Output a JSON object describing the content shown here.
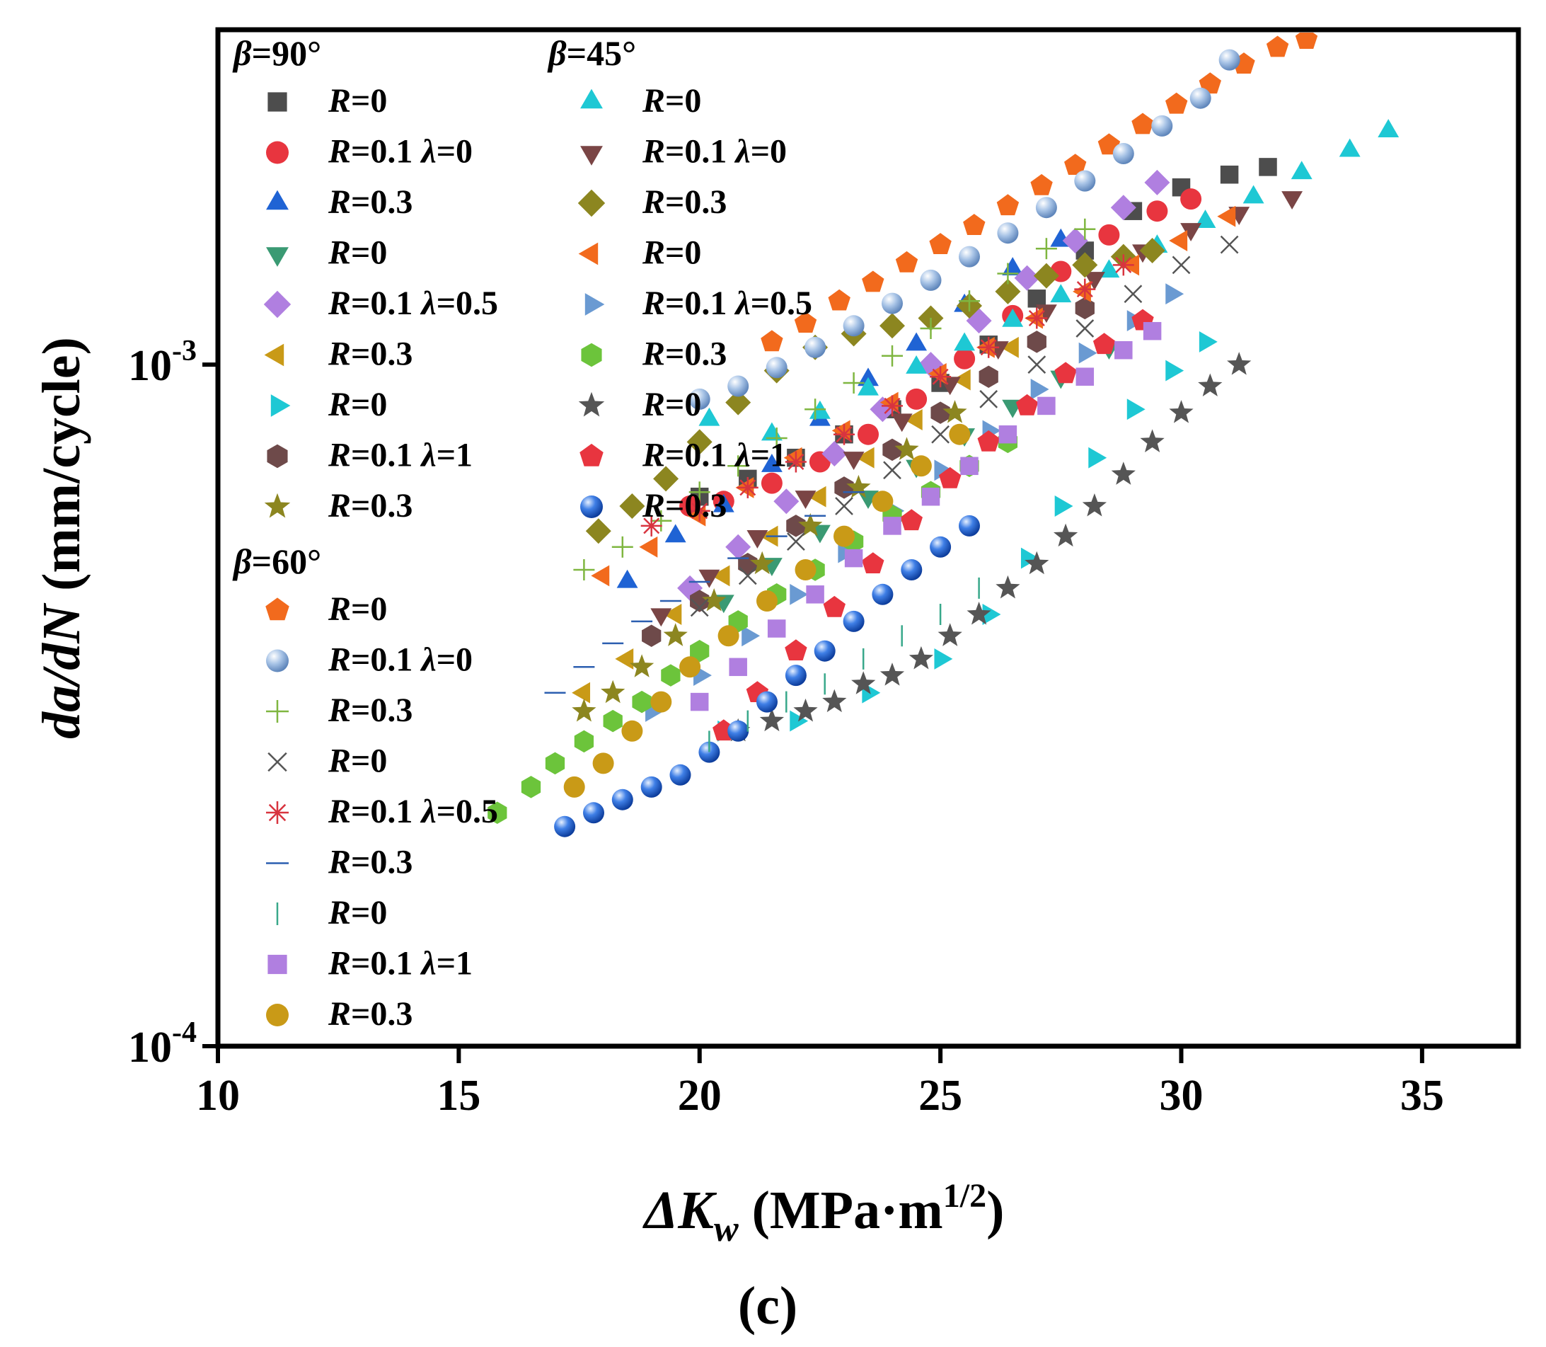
{
  "chart_data": {
    "type": "scatter",
    "x_scale": "linear",
    "y_scale": "log",
    "xlim": [
      10,
      37
    ],
    "ylim": [
      0.0001,
      0.0031
    ],
    "x_ticks": [
      10,
      15,
      20,
      25,
      30,
      35
    ],
    "x_tick_labels": [
      "10",
      "15",
      "20",
      "25",
      "30",
      "35"
    ],
    "y_ticks": [
      0.0001,
      0.001
    ],
    "y_tick_labels": [
      {
        "base": "10",
        "exp": "-4"
      },
      {
        "base": "10",
        "exp": "-3"
      }
    ],
    "xlabel": {
      "delta": "ΔK",
      "sub": "w",
      "unit": " (MPa·m",
      "sup": "1/2",
      "close": ")"
    },
    "ylabel": {
      "part1": "da/dN",
      "part2": " (mm/cycle)"
    },
    "panel_label": "(c)",
    "legend_groups": [
      {
        "title": "β=90°",
        "column": 0
      },
      {
        "title": "β=45°",
        "column": 1
      },
      {
        "title": "β=60°",
        "column": 0
      }
    ],
    "series": [
      {
        "group": 0,
        "name": "R=0",
        "marker": "square",
        "color": "#4d4d4d",
        "x": [
          20.0,
          21.0,
          22.0,
          23.0,
          24.0,
          25.0,
          26.0,
          27.0,
          28.0,
          29.0,
          30.0,
          31.0,
          31.8
        ],
        "y": [
          0.00064,
          0.00068,
          0.00073,
          0.00079,
          0.00086,
          0.00094,
          0.00107,
          0.00125,
          0.00147,
          0.00168,
          0.00182,
          0.0019,
          0.00195
        ]
      },
      {
        "group": 0,
        "name": "R=0.1 λ=0",
        "marker": "circle",
        "color": "#e8353f",
        "x": [
          19.8,
          20.5,
          21.5,
          22.5,
          23.5,
          24.5,
          25.5,
          26.5,
          27.5,
          28.5,
          29.5,
          30.2
        ],
        "y": [
          0.00062,
          0.00063,
          0.00067,
          0.00072,
          0.00079,
          0.00089,
          0.00102,
          0.00118,
          0.00137,
          0.00155,
          0.00168,
          0.00175
        ]
      },
      {
        "group": 0,
        "name": "R=0.3",
        "marker": "triangle-up",
        "color": "#1f63d4",
        "x": [
          18.5,
          19.5,
          20.5,
          21.5,
          22.5,
          23.5,
          24.5,
          25.5,
          26.5,
          27.5
        ],
        "y": [
          0.00048,
          0.00056,
          0.00062,
          0.00071,
          0.00083,
          0.00095,
          0.00107,
          0.00122,
          0.00138,
          0.00152
        ]
      },
      {
        "group": 0,
        "name": "R=0",
        "marker": "triangle-down",
        "color": "#3a9a73",
        "x": [
          20.5,
          21.5,
          22.5,
          23.5,
          24.5,
          25.5,
          26.5,
          27.5,
          28.5
        ],
        "y": [
          0.00045,
          0.00051,
          0.00057,
          0.00064,
          0.00071,
          0.00079,
          0.00087,
          0.00096,
          0.00106
        ]
      },
      {
        "group": 0,
        "name": "R=0.1 λ=0.5",
        "marker": "diamond",
        "color": "#b07fe0",
        "x": [
          19.8,
          20.8,
          21.8,
          22.8,
          23.8,
          24.8,
          25.8,
          26.8,
          27.8,
          28.8,
          29.5
        ],
        "y": [
          0.00047,
          0.00054,
          0.00063,
          0.00074,
          0.00086,
          0.001,
          0.00116,
          0.00134,
          0.00152,
          0.0017,
          0.00185
        ]
      },
      {
        "group": 0,
        "name": "R=0.3",
        "marker": "triangle-left",
        "color": "#c99a17",
        "x": [
          17.6,
          18.5,
          19.5,
          20.5,
          21.5,
          22.5,
          23.5,
          24.5,
          25.5,
          26.5
        ],
        "y": [
          0.00033,
          0.00037,
          0.00043,
          0.00049,
          0.00056,
          0.00064,
          0.00073,
          0.00083,
          0.00095,
          0.00106
        ]
      },
      {
        "group": 0,
        "name": "R=0",
        "marker": "triangle-right",
        "color": "#1ec8d4",
        "x": [
          20.5,
          22.0,
          23.5,
          25.0,
          26.0,
          26.8,
          27.5,
          28.2,
          29.0,
          29.8,
          30.5
        ],
        "y": [
          0.00029,
          0.0003,
          0.00033,
          0.00037,
          0.00043,
          0.00052,
          0.00062,
          0.00073,
          0.00086,
          0.00098,
          0.00108
        ]
      },
      {
        "group": 0,
        "name": "R=0.1 λ=1",
        "marker": "hexagon",
        "color": "#6e4a4a",
        "x": [
          19.0,
          20.0,
          21.0,
          22.0,
          23.0,
          24.0,
          25.0,
          26.0,
          27.0,
          28.0
        ],
        "y": [
          0.0004,
          0.00045,
          0.00051,
          0.00058,
          0.00066,
          0.00075,
          0.00085,
          0.00096,
          0.00108,
          0.00121
        ]
      },
      {
        "group": 0,
        "name": "R=0.3",
        "marker": "star",
        "color": "#8c8620",
        "x": [
          17.6,
          18.2,
          18.8,
          19.5,
          20.3,
          21.3,
          22.3,
          23.3,
          24.3,
          25.3
        ],
        "y": [
          0.00031,
          0.00033,
          0.00036,
          0.0004,
          0.00045,
          0.00051,
          0.00058,
          0.00066,
          0.00075,
          0.00085
        ]
      },
      {
        "group": 1,
        "name": "R=0",
        "marker": "triangle-up",
        "color": "#1ec8d4",
        "x": [
          20.2,
          21.5,
          22.5,
          23.5,
          24.5,
          25.5,
          26.5,
          27.5,
          28.5,
          29.5,
          30.5,
          31.5,
          32.5,
          33.5,
          34.3
        ],
        "y": [
          0.00083,
          0.00079,
          0.00085,
          0.00092,
          0.00099,
          0.00107,
          0.00116,
          0.00126,
          0.00137,
          0.00149,
          0.00162,
          0.00176,
          0.00191,
          0.00206,
          0.0022
        ]
      },
      {
        "group": 1,
        "name": "R=0.1 λ=0",
        "marker": "triangle-down",
        "color": "#7a4545",
        "x": [
          19.2,
          20.2,
          21.2,
          22.2,
          23.2,
          24.2,
          25.2,
          26.2,
          27.2,
          28.2,
          29.2,
          30.2,
          31.2,
          32.3
        ],
        "y": [
          0.00043,
          0.00049,
          0.00056,
          0.00064,
          0.00073,
          0.00083,
          0.00094,
          0.00106,
          0.0012,
          0.00134,
          0.00147,
          0.00158,
          0.00167,
          0.00176
        ]
      },
      {
        "group": 1,
        "name": "R=0.3",
        "marker": "diamond",
        "color": "#8c8620",
        "x": [
          17.9,
          18.6,
          19.3,
          20.0,
          20.8,
          21.6,
          22.4,
          23.2,
          24.0,
          24.8,
          25.6,
          26.4,
          27.2,
          28.0,
          28.8,
          29.4
        ],
        "y": [
          0.00057,
          0.00062,
          0.00068,
          0.00077,
          0.00088,
          0.00098,
          0.00106,
          0.00111,
          0.00114,
          0.00117,
          0.00122,
          0.00128,
          0.00135,
          0.0014,
          0.00144,
          0.00147
        ]
      },
      {
        "group": 1,
        "name": "R=0",
        "marker": "triangle-left",
        "color": "#f26a1d",
        "x": [
          18.0,
          19.0,
          20.0,
          21.0,
          22.0,
          23.0,
          24.0,
          25.0,
          26.0,
          27.0,
          28.0,
          29.0,
          30.0,
          31.0
        ],
        "y": [
          0.00049,
          0.00054,
          0.0006,
          0.00066,
          0.00073,
          0.0008,
          0.00088,
          0.00097,
          0.00106,
          0.00117,
          0.00128,
          0.0014,
          0.00152,
          0.00165
        ]
      },
      {
        "group": 1,
        "name": "R=0.1 λ=0.5",
        "marker": "triangle-right",
        "color": "#6a9ad2",
        "x": [
          19.0,
          20.0,
          21.0,
          22.0,
          23.0,
          24.0,
          25.0,
          26.0,
          27.0,
          28.0,
          29.0,
          29.8
        ],
        "y": [
          0.00031,
          0.00035,
          0.0004,
          0.00046,
          0.00053,
          0.00061,
          0.0007,
          0.0008,
          0.00092,
          0.00104,
          0.00116,
          0.00127
        ]
      },
      {
        "group": 1,
        "name": "R=0.3",
        "marker": "hexagon",
        "color": "#6cc43b",
        "x": [
          15.8,
          16.5,
          17.0,
          17.6,
          18.2,
          18.8,
          19.4,
          20.0,
          20.8,
          21.6,
          22.4,
          23.2,
          24.0,
          24.8,
          25.6,
          26.4
        ],
        "y": [
          0.00022,
          0.00024,
          0.00026,
          0.00028,
          0.0003,
          0.00032,
          0.00035,
          0.00038,
          0.00042,
          0.00046,
          0.0005,
          0.00055,
          0.0006,
          0.00065,
          0.00071,
          0.00077
        ]
      },
      {
        "group": 1,
        "name": "R=0",
        "marker": "star",
        "color": "#555555",
        "x": [
          20.8,
          21.5,
          22.2,
          22.8,
          23.4,
          24.0,
          24.6,
          25.2,
          25.8,
          26.4,
          27.0,
          27.6,
          28.2,
          28.8,
          29.4,
          30.0,
          30.6,
          31.2
        ],
        "y": [
          0.00029,
          0.0003,
          0.00031,
          0.00032,
          0.00034,
          0.00035,
          0.00037,
          0.0004,
          0.00043,
          0.00047,
          0.00051,
          0.00056,
          0.00062,
          0.00069,
          0.00077,
          0.00085,
          0.00093,
          0.001
        ]
      },
      {
        "group": 1,
        "name": "R=0.1 λ=1",
        "marker": "pentagon",
        "color": "#e8353f",
        "x": [
          20.5,
          21.2,
          22.0,
          22.8,
          23.6,
          24.4,
          25.2,
          26.0,
          26.8,
          27.6,
          28.4,
          29.2
        ],
        "y": [
          0.00029,
          0.00033,
          0.00038,
          0.00044,
          0.00051,
          0.00059,
          0.00068,
          0.00077,
          0.00087,
          0.00097,
          0.00107,
          0.00116
        ]
      },
      {
        "group": 1,
        "name": "R=0.3",
        "marker": "sphere-blue",
        "color": "#1f63d4",
        "x": [
          17.2,
          17.8,
          18.4,
          19.0,
          19.6,
          20.2,
          20.8,
          21.4,
          22.0,
          22.6,
          23.2,
          23.8,
          24.4,
          25.0,
          25.6
        ],
        "y": [
          0.00021,
          0.00022,
          0.00023,
          0.00024,
          0.00025,
          0.00027,
          0.00029,
          0.00032,
          0.00035,
          0.00038,
          0.00042,
          0.00046,
          0.0005,
          0.00054,
          0.00058
        ]
      },
      {
        "group": 2,
        "name": "R=0",
        "marker": "pentagon",
        "color": "#f26a1d",
        "x": [
          21.5,
          22.2,
          22.9,
          23.6,
          24.3,
          25.0,
          25.7,
          26.4,
          27.1,
          27.8,
          28.5,
          29.2,
          29.9,
          30.6,
          31.3,
          32.0,
          32.6
        ],
        "y": [
          0.00108,
          0.00115,
          0.00124,
          0.00132,
          0.00141,
          0.0015,
          0.0016,
          0.00171,
          0.00183,
          0.00196,
          0.0021,
          0.00225,
          0.00241,
          0.00258,
          0.00276,
          0.00292,
          0.003
        ]
      },
      {
        "group": 2,
        "name": "R=0.1 λ=0",
        "marker": "sphere-light",
        "color": "#8fb3de",
        "x": [
          20.0,
          20.8,
          21.6,
          22.4,
          23.2,
          24.0,
          24.8,
          25.6,
          26.4,
          27.2,
          28.0,
          28.8,
          29.6,
          30.4,
          31.0
        ],
        "y": [
          0.00089,
          0.00093,
          0.00099,
          0.00106,
          0.00114,
          0.00123,
          0.00133,
          0.00144,
          0.00156,
          0.0017,
          0.00186,
          0.00204,
          0.00224,
          0.00246,
          0.0028
        ]
      },
      {
        "group": 2,
        "name": "R=0.3",
        "marker": "plus",
        "color": "#7fb640",
        "x": [
          17.6,
          18.4,
          19.2,
          20.0,
          20.8,
          21.6,
          22.4,
          23.2,
          24.0,
          24.8,
          25.6,
          26.4,
          27.2,
          28.0
        ],
        "y": [
          0.0005,
          0.00054,
          0.00059,
          0.00065,
          0.00071,
          0.00078,
          0.00086,
          0.00094,
          0.00103,
          0.00113,
          0.00124,
          0.00136,
          0.00148,
          0.00158
        ]
      },
      {
        "group": 2,
        "name": "R=0",
        "marker": "x",
        "color": "#555555",
        "x": [
          20.0,
          21.0,
          22.0,
          23.0,
          24.0,
          25.0,
          26.0,
          27.0,
          28.0,
          29.0,
          30.0,
          31.0
        ],
        "y": [
          0.00044,
          0.00049,
          0.00055,
          0.00062,
          0.0007,
          0.00079,
          0.00089,
          0.001,
          0.00113,
          0.00127,
          0.0014,
          0.0015
        ]
      },
      {
        "group": 2,
        "name": "R=0.1 λ=0.5",
        "marker": "asterisk",
        "color": "#d8343f",
        "x": [
          19.0,
          20.0,
          21.0,
          22.0,
          23.0,
          24.0,
          25.0,
          26.0,
          27.0,
          28.0,
          28.8
        ],
        "y": [
          0.00058,
          0.00061,
          0.00066,
          0.00072,
          0.00079,
          0.00087,
          0.00096,
          0.00106,
          0.00117,
          0.00129,
          0.0014
        ]
      },
      {
        "group": 2,
        "name": "R=0.3",
        "marker": "hline",
        "color": "#2c5fb0",
        "x": [
          17.0,
          17.6,
          18.2,
          18.8,
          19.4,
          20.0,
          20.8,
          21.6,
          22.4,
          23.2
        ],
        "y": [
          0.00033,
          0.00036,
          0.00039,
          0.00042,
          0.00045,
          0.00048,
          0.00052,
          0.00056,
          0.0006,
          0.00065
        ]
      },
      {
        "group": 2,
        "name": "R=0",
        "marker": "vline",
        "color": "#38a88a",
        "x": [
          20.2,
          21.0,
          21.8,
          22.6,
          23.4,
          24.2,
          25.0,
          25.8
        ],
        "y": [
          0.00028,
          0.0003,
          0.00032,
          0.00034,
          0.00037,
          0.0004,
          0.00043,
          0.00047
        ]
      },
      {
        "group": 2,
        "name": "R=0.1 λ=1",
        "marker": "square",
        "color": "#b07fe0",
        "x": [
          20.0,
          20.8,
          21.6,
          22.4,
          23.2,
          24.0,
          24.8,
          25.6,
          26.4,
          27.2,
          28.0,
          28.8,
          29.4
        ],
        "y": [
          0.00032,
          0.00036,
          0.00041,
          0.00046,
          0.00052,
          0.00058,
          0.00064,
          0.00071,
          0.00079,
          0.00087,
          0.00096,
          0.00105,
          0.00112
        ]
      },
      {
        "group": 2,
        "name": "R=0.3",
        "marker": "circle",
        "color": "#c99a17",
        "x": [
          17.4,
          18.0,
          18.6,
          19.2,
          19.8,
          20.6,
          21.4,
          22.2,
          23.0,
          23.8,
          24.6,
          25.4
        ],
        "y": [
          0.00024,
          0.00026,
          0.00029,
          0.00032,
          0.00036,
          0.0004,
          0.00045,
          0.0005,
          0.00056,
          0.00063,
          0.00071,
          0.00079
        ]
      }
    ]
  }
}
